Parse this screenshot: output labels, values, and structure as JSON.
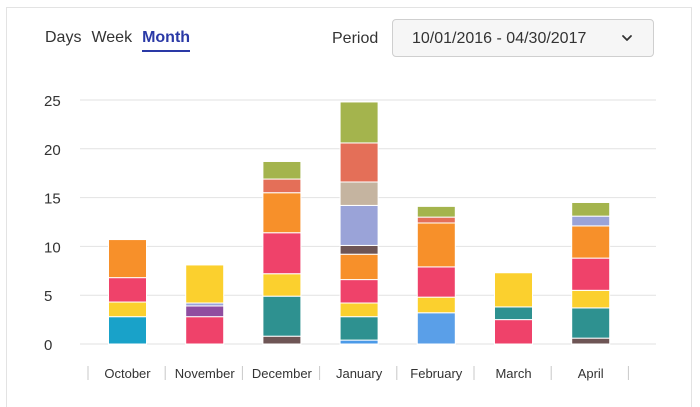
{
  "tabs": [
    {
      "label": "Days",
      "active": false
    },
    {
      "label": "Week",
      "active": false
    },
    {
      "label": "Month",
      "active": true
    }
  ],
  "period": {
    "label": "Period",
    "value": "10/01/2016 - 04/30/2017",
    "icon": "chevron-down-icon"
  },
  "chart_data": {
    "type": "bar",
    "stacked": true,
    "grid": true,
    "ylim": [
      0,
      25
    ],
    "yticks": [
      0,
      5,
      10,
      15,
      20,
      25
    ],
    "categories": [
      "October",
      "November",
      "December",
      "January",
      "February",
      "March",
      "April"
    ],
    "stacks": [
      [
        {
          "v": 2.8,
          "c": "#19a2c9"
        },
        {
          "v": 1.5,
          "c": "#fbd02e"
        },
        {
          "v": 2.5,
          "c": "#ef426a"
        },
        {
          "v": 3.9,
          "c": "#f7902a"
        }
      ],
      [
        {
          "v": 2.8,
          "c": "#ef426a"
        },
        {
          "v": 1.1,
          "c": "#8f4da0"
        },
        {
          "v": 0.3,
          "c": "#9aa3d8"
        },
        {
          "v": 3.9,
          "c": "#fbd02e"
        }
      ],
      [
        {
          "v": 0.8,
          "c": "#6e5555"
        },
        {
          "v": 4.1,
          "c": "#2e9190"
        },
        {
          "v": 2.3,
          "c": "#fbd02e"
        },
        {
          "v": 4.2,
          "c": "#ef426a"
        },
        {
          "v": 4.1,
          "c": "#f7902a"
        },
        {
          "v": 1.4,
          "c": "#e46f58"
        },
        {
          "v": 1.8,
          "c": "#a4b44d"
        }
      ],
      [
        {
          "v": 0.4,
          "c": "#4b9ae8"
        },
        {
          "v": 2.4,
          "c": "#2e9190"
        },
        {
          "v": 1.4,
          "c": "#fbd02e"
        },
        {
          "v": 2.4,
          "c": "#ef426a"
        },
        {
          "v": 2.6,
          "c": "#f7902a"
        },
        {
          "v": 0.9,
          "c": "#6e5555"
        },
        {
          "v": 4.1,
          "c": "#9aa3d8"
        },
        {
          "v": 2.4,
          "c": "#c5b4a0"
        },
        {
          "v": 4.0,
          "c": "#e46f58"
        },
        {
          "v": 4.2,
          "c": "#a4b44d"
        }
      ],
      [
        {
          "v": 3.2,
          "c": "#5a9fe8"
        },
        {
          "v": 1.6,
          "c": "#fbd02e"
        },
        {
          "v": 3.1,
          "c": "#ef426a"
        },
        {
          "v": 4.5,
          "c": "#f7902a"
        },
        {
          "v": 0.6,
          "c": "#e46f58"
        },
        {
          "v": 1.1,
          "c": "#a4b44d"
        }
      ],
      [
        {
          "v": 2.5,
          "c": "#ef426a"
        },
        {
          "v": 1.3,
          "c": "#2e9190"
        },
        {
          "v": 3.5,
          "c": "#fbd02e"
        }
      ],
      [
        {
          "v": 0.6,
          "c": "#6e5555"
        },
        {
          "v": 3.1,
          "c": "#2e9190"
        },
        {
          "v": 1.8,
          "c": "#fbd02e"
        },
        {
          "v": 3.3,
          "c": "#ef426a"
        },
        {
          "v": 3.3,
          "c": "#f7902a"
        },
        {
          "v": 1.0,
          "c": "#9aa3d8"
        },
        {
          "v": 1.4,
          "c": "#a4b44d"
        }
      ]
    ]
  }
}
